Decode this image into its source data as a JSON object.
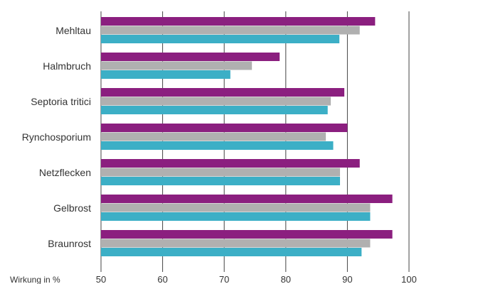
{
  "chart_data": {
    "type": "bar",
    "orientation": "horizontal",
    "categories": [
      "Mehltau",
      "Halmbruch",
      "Septoria tritici",
      "Rynchosporium",
      "Netzflecken",
      "Gelbrost",
      "Braunrost"
    ],
    "series": [
      {
        "color": "#8b1f7f",
        "values": [
          94.5,
          79.0,
          89.5,
          90.0,
          92.0,
          97.3,
          97.3
        ]
      },
      {
        "color": "#b0b0b0",
        "values": [
          92.0,
          74.5,
          87.3,
          86.5,
          88.8,
          93.7,
          93.7
        ]
      },
      {
        "color": "#3cafc6",
        "values": [
          88.7,
          71.0,
          86.8,
          87.7,
          88.8,
          93.7,
          92.3
        ]
      }
    ],
    "xlim": [
      50,
      100
    ],
    "xticks": [
      50,
      60,
      70,
      80,
      90,
      100
    ],
    "xlabel": "Wirkung in %",
    "ylabel": "",
    "title": "",
    "grid": true,
    "legend": "none",
    "gridline_color": "#444444"
  }
}
